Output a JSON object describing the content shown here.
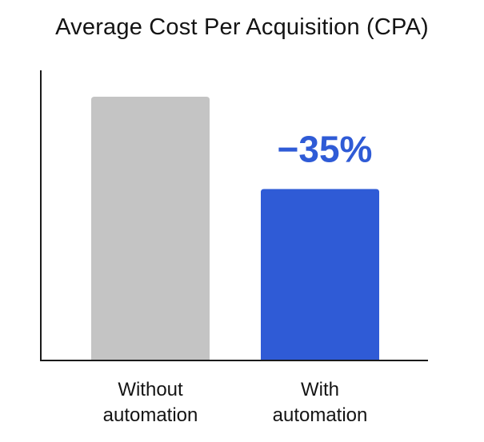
{
  "chart_data": {
    "type": "bar",
    "title": "Average Cost Per Acquisition (CPA)",
    "categories": [
      [
        "Without",
        "automation"
      ],
      [
        "With",
        "automation"
      ]
    ],
    "values": [
      100,
      65
    ],
    "ylim": [
      0,
      110
    ],
    "xlabel": "",
    "ylabel": "",
    "grid": false,
    "colors": [
      "#c4c4c4",
      "#2f5bd6"
    ],
    "axis_color": "#1a1a1a",
    "annotation": {
      "text": "−35%",
      "category_index": 1,
      "color": "#2f5bd6"
    }
  }
}
